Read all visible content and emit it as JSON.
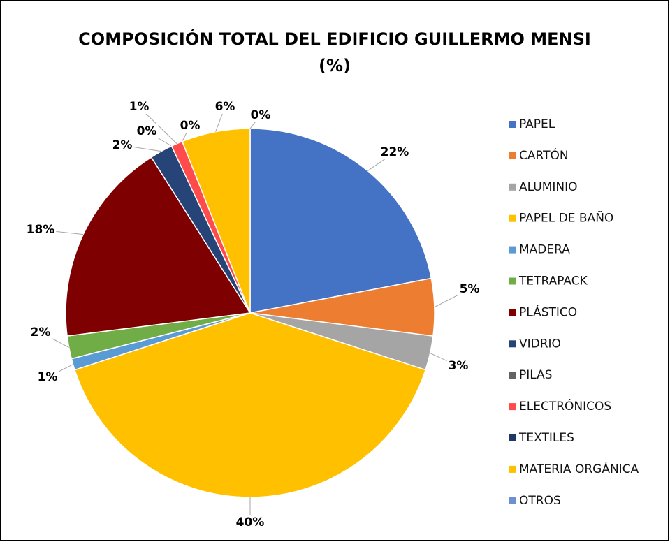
{
  "chart_data": {
    "type": "pie",
    "title": [
      "COMPOSICIÓN TOTAL DEL EDIFICIO GUILLERMO MENSI",
      "(%)"
    ],
    "categories": [
      "PAPEL",
      "CARTÓN",
      "ALUMINIO",
      "PAPEL DE BAÑO",
      "MADERA",
      "TETRAPACK",
      "PLÁSTICO",
      "VIDRIO",
      "PILAS",
      "ELECTRÓNICOS",
      "TEXTILES",
      "MATERIA ORGÁNICA",
      "OTROS"
    ],
    "values": [
      22,
      5,
      3,
      40,
      1,
      2,
      18,
      2,
      0,
      1,
      0,
      6,
      0
    ],
    "value_labels": [
      "22%",
      "5%",
      "3%",
      "40%",
      "1%",
      "2%",
      "18%",
      "2%",
      "0%",
      "1%",
      "0%",
      "6%",
      "0%"
    ],
    "colors": [
      "#4472c4",
      "#ed7d31",
      "#a5a5a5",
      "#ffc000",
      "#5b9bd5",
      "#70ad47",
      "#7f0000",
      "#264478",
      "#636363",
      "#ff4b4b",
      "#1f3864",
      "#ffc000",
      "#6f8fd4"
    ],
    "legend": "right"
  }
}
